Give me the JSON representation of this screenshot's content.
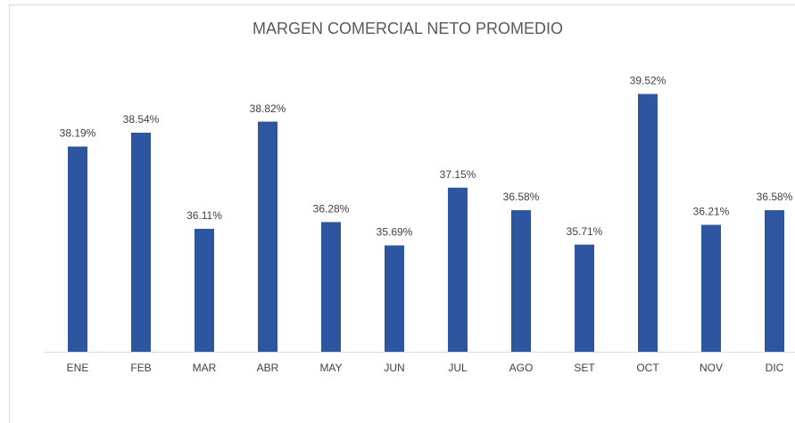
{
  "chart_data": {
    "type": "bar",
    "title": "MARGEN COMERCIAL NETO PROMEDIO",
    "categories": [
      "ENE",
      "FEB",
      "MAR",
      "ABR",
      "MAY",
      "JUN",
      "JUL",
      "AGO",
      "SET",
      "OCT",
      "NOV",
      "DIC"
    ],
    "values": [
      38.19,
      38.54,
      36.11,
      38.82,
      36.28,
      35.69,
      37.15,
      36.58,
      35.71,
      39.52,
      36.21,
      36.58
    ],
    "value_labels": [
      "38.19%",
      "38.54%",
      "36.11%",
      "38.82%",
      "36.28%",
      "35.69%",
      "37.15%",
      "36.58%",
      "35.71%",
      "39.52%",
      "36.21%",
      "36.58%"
    ],
    "color": "#2e55a0",
    "ylim": [
      33,
      40.5
    ],
    "grid": false
  }
}
